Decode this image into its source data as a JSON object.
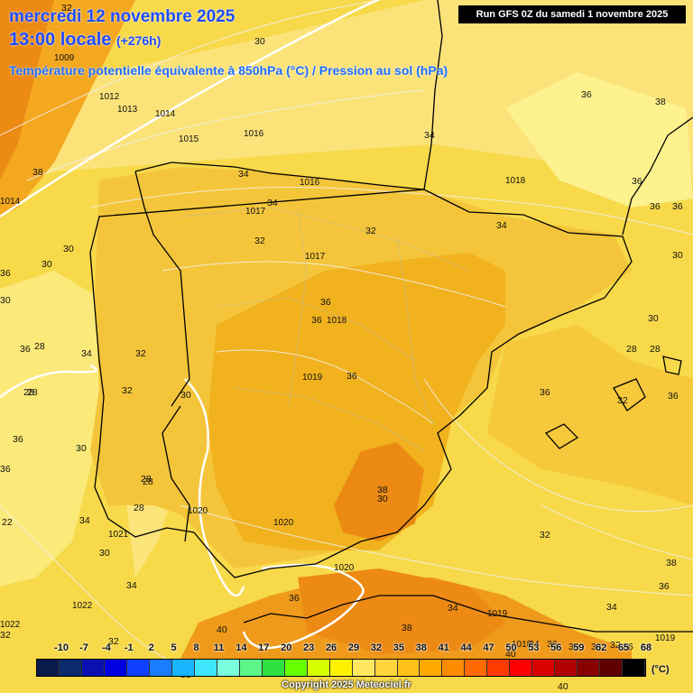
{
  "header": {
    "date": "mercredi 12 novembre 2025",
    "hour": "13:00 locale",
    "lead": "(+276h)",
    "parameter": "Température potentielle équivalente à 850hPa (°C) / Pression au sol (hPa)",
    "run": "Run GFS 0Z du samedi 1 novembre 2025"
  },
  "temperature_labels": [
    "32",
    "30",
    "38",
    "30",
    "30",
    "36",
    "30",
    "28",
    "28",
    "34",
    "32",
    "32",
    "30",
    "36",
    "36",
    "30",
    "28",
    "28",
    "34",
    "22",
    "30",
    "34",
    "32",
    "34",
    "34",
    "32",
    "32",
    "34",
    "34",
    "36",
    "36",
    "36",
    "36",
    "36",
    "36",
    "30",
    "30",
    "28",
    "28",
    "36",
    "32",
    "36",
    "38",
    "38",
    "30",
    "32",
    "38",
    "36",
    "40",
    "38",
    "34",
    "32",
    "38",
    "40",
    "40",
    "34",
    "34",
    "36",
    "34",
    "36",
    "36",
    "30",
    "36",
    "36",
    "34",
    "36",
    "28",
    "28",
    "32"
  ],
  "pressure_labels": [
    "1009",
    "1012",
    "1013",
    "1014",
    "1015",
    "1016",
    "1016",
    "1017",
    "1017",
    "1018",
    "1018",
    "1019",
    "1020",
    "1020",
    "1020",
    "1021",
    "1022",
    "1022",
    "1018",
    "1019",
    "1019",
    "1014"
  ],
  "scale": {
    "unit": "(°C)",
    "values": [
      "-10",
      "-7",
      "-4",
      "-1",
      "2",
      "5",
      "8",
      "11",
      "14",
      "17",
      "20",
      "23",
      "26",
      "29",
      "32",
      "35",
      "38",
      "41",
      "44",
      "47",
      "50",
      "53",
      "56",
      "59",
      "62",
      "65",
      "68"
    ],
    "colors": [
      "#0a1a4a",
      "#0a2a6e",
      "#0a10b0",
      "#0000e0",
      "#1040ff",
      "#1a7cff",
      "#19b5ff",
      "#40e6ff",
      "#79ffde",
      "#5cf58a",
      "#2fe040",
      "#66ff00",
      "#d8ff00",
      "#fff200",
      "#ffe860",
      "#ffd43c",
      "#ffc21a",
      "#ffa800",
      "#ff8c00",
      "#ff6a00",
      "#ff3a00",
      "#ff0000",
      "#d80000",
      "#b00000",
      "#880000",
      "#600000",
      "#000000"
    ]
  },
  "legend": {
    "copyright": "Copyright 2025 Meteociel.fr"
  },
  "colors": {
    "sea_yellow": "#f7d94a",
    "land_yellow": "#f4c53a",
    "orange": "#f1a61a",
    "deep_orange": "#ec8a14",
    "pale_yellow": "#fbe97a",
    "light_yellow": "#fdf28e",
    "green": "#a9e042",
    "title_blue": "#1f4cff"
  }
}
